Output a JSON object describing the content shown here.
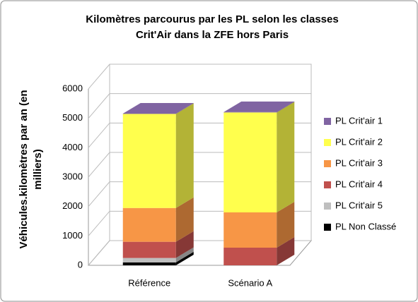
{
  "chart_data": {
    "type": "bar3d_stacked",
    "title": [
      "Kilomètres parcourus par les PL selon les classes",
      "Crit'Air dans la ZFE hors Paris"
    ],
    "y_label": [
      "Véhicules.kilomètres par an (en",
      "milliers)"
    ],
    "categories": [
      "Référence",
      "Scénario A"
    ],
    "series": [
      {
        "name": "PL Non Classé",
        "color": "#000000",
        "values": [
          100,
          0
        ]
      },
      {
        "name": "PL Crit'air 5",
        "color": "#bfbfbf",
        "values": [
          150,
          0
        ]
      },
      {
        "name": "PL Crit'air 4",
        "color": "#c0504d",
        "values": [
          550,
          600
        ]
      },
      {
        "name": "PL Crit'air 3",
        "color": "#f79646",
        "values": [
          1150,
          1200
        ]
      },
      {
        "name": "PL Crit'air 2",
        "color": "#ffff4d",
        "values": [
          3200,
          3400
        ]
      },
      {
        "name": "PL Crit'air 1",
        "color": "#8064a2",
        "values": [
          10,
          10
        ]
      }
    ],
    "ylim": [
      0,
      6000
    ],
    "yticks": [
      0,
      1000,
      2000,
      3000,
      4000,
      5000,
      6000
    ],
    "grid": true,
    "legend": "right"
  }
}
